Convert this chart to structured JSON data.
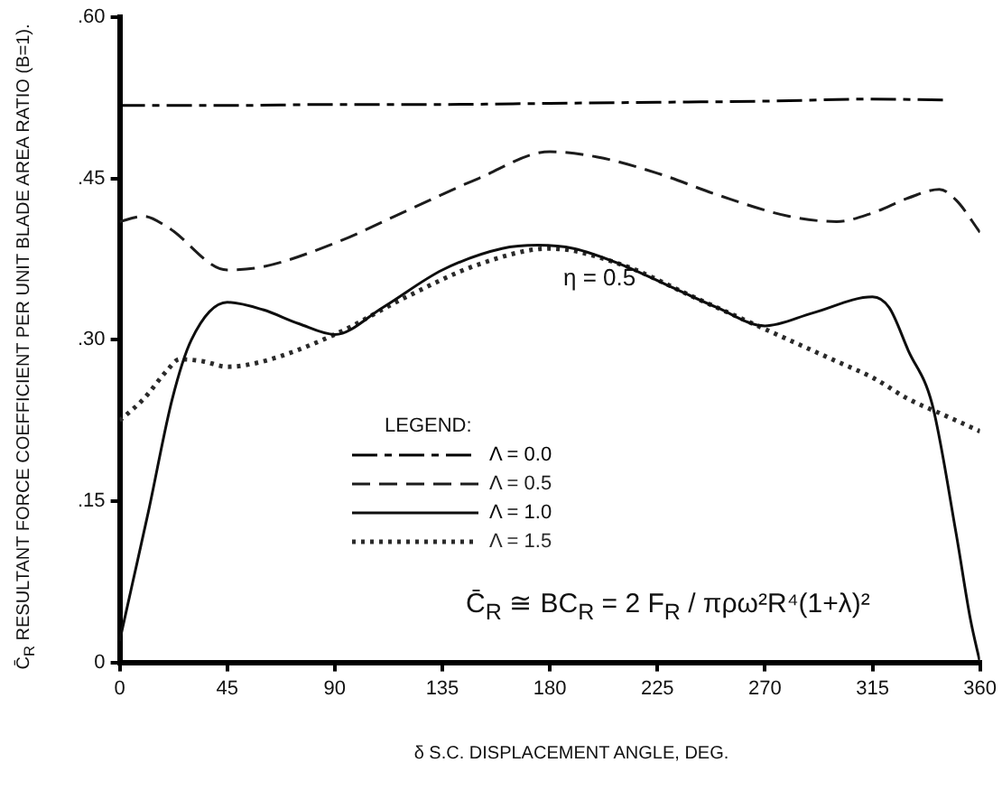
{
  "chart_data": {
    "type": "line",
    "xlabel": "δ  S.C. DISPLACEMENT ANGLE, DEG.",
    "ylabel": "C̄$_{R}$  RESULTANT FORCE COEFFICIENT PER UNIT BLADE AREA RATIO (B=1).",
    "legend_title": "LEGEND:",
    "legend": "bottom left",
    "grid": false,
    "marker": "none",
    "xlim": [
      0,
      360
    ],
    "xticks": [
      0,
      45,
      90,
      135,
      180,
      225,
      270,
      315,
      360
    ],
    "ylim": [
      0,
      0.6
    ],
    "yticks": [
      0,
      {
        "value": 0.15,
        "label": ".15"
      },
      {
        "value": 0.3,
        "label": ".30"
      },
      {
        "value": 0.45,
        "label": ".45"
      },
      {
        "value": 0.6,
        "label": ".60"
      }
    ],
    "annotations": [
      "η = 0.5",
      "C̄$_{R}$ ≅ BC$_{R}$ = 2 F$_{R}$ / πρω²R⁴(1+λ)²"
    ],
    "series": [
      {
        "name": "Λ = 0.0",
        "color": "#000000",
        "line_style": "dashdot",
        "x": [
          0,
          20,
          45,
          90,
          135,
          180,
          225,
          270,
          315,
          345
        ],
        "values": [
          0.518,
          0.518,
          0.518,
          0.519,
          0.519,
          0.52,
          0.521,
          0.522,
          0.524,
          0.523
        ]
      },
      {
        "name": "Λ = 0.5",
        "color": "#1c1c1c",
        "line_style": "dashed",
        "x": [
          0,
          10,
          20,
          45,
          60,
          90,
          120,
          150,
          180,
          200,
          225,
          250,
          280,
          300,
          315,
          330,
          343,
          350,
          360
        ],
        "values": [
          0.41,
          0.415,
          0.405,
          0.365,
          0.368,
          0.39,
          0.42,
          0.45,
          0.475,
          0.47,
          0.455,
          0.435,
          0.415,
          0.41,
          0.418,
          0.432,
          0.44,
          0.43,
          0.4
        ]
      },
      {
        "name": "Λ = 1.0",
        "color": "#0e0e0e",
        "line_style": "solid",
        "x": [
          0,
          5,
          12,
          22,
          30,
          45,
          60,
          75,
          90,
          110,
          135,
          160,
          175,
          190,
          210,
          230,
          250,
          270,
          290,
          315,
          322,
          330,
          340,
          350,
          356,
          360
        ],
        "values": [
          0.02,
          0.07,
          0.14,
          0.245,
          0.3,
          0.335,
          0.328,
          0.315,
          0.305,
          0.33,
          0.365,
          0.385,
          0.388,
          0.385,
          0.37,
          0.35,
          0.33,
          0.313,
          0.325,
          0.34,
          0.33,
          0.29,
          0.24,
          0.12,
          0.04,
          0
        ]
      },
      {
        "name": "Λ = 1.5",
        "color": "#2a2a2a",
        "line_style": "dotted",
        "x": [
          0,
          10,
          20,
          25,
          35,
          45,
          60,
          90,
          120,
          150,
          180,
          210,
          240,
          270,
          300,
          315,
          330,
          345,
          360
        ],
        "values": [
          0.225,
          0.245,
          0.272,
          0.282,
          0.28,
          0.275,
          0.28,
          0.305,
          0.34,
          0.37,
          0.385,
          0.37,
          0.34,
          0.31,
          0.28,
          0.265,
          0.245,
          0.23,
          0.215
        ]
      }
    ]
  }
}
